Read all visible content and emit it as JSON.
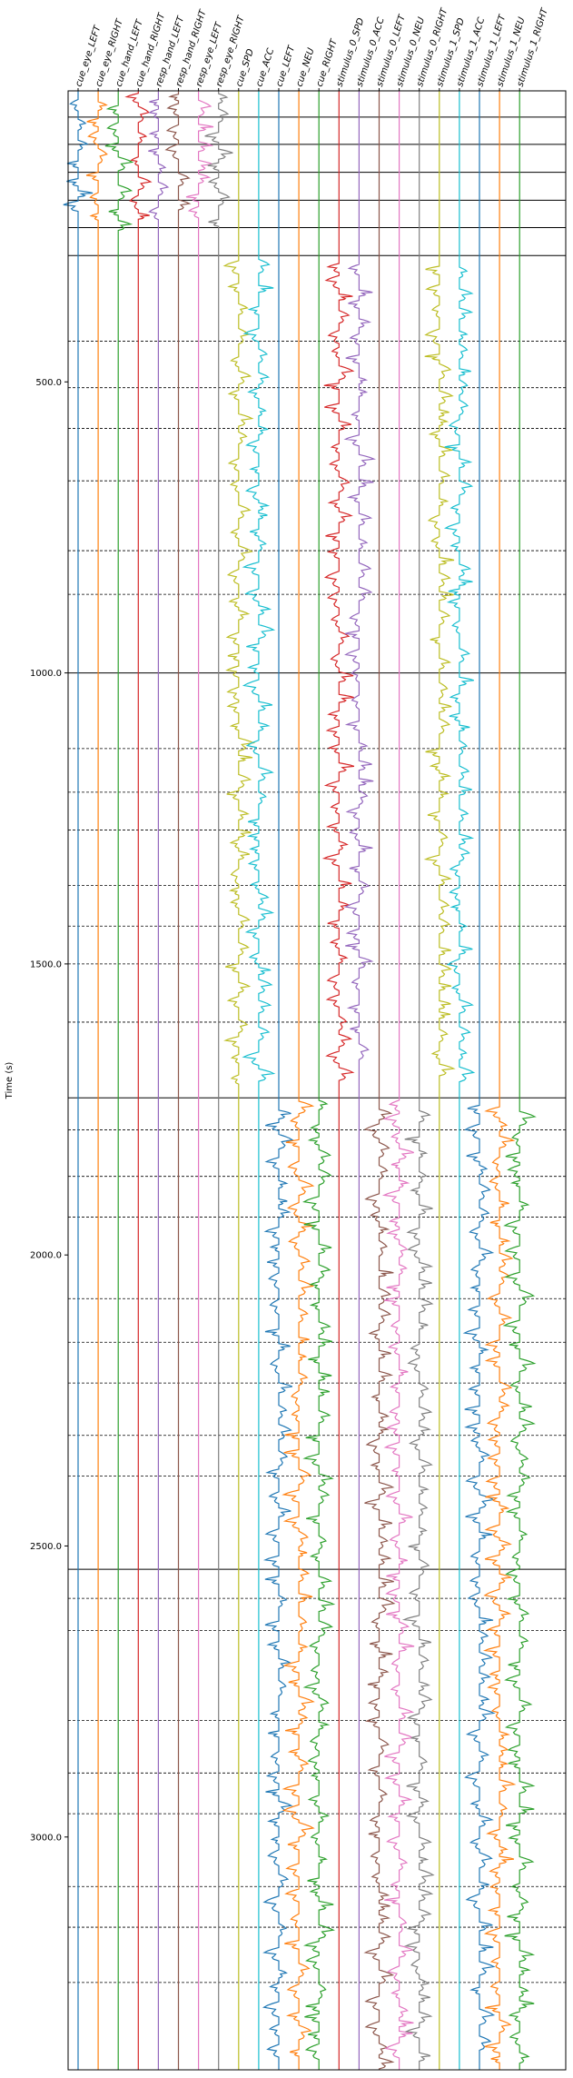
{
  "chart_data": {
    "type": "line",
    "title": "",
    "xlabel": "",
    "ylabel": "Time (s)",
    "ylim": [
      0,
      3400
    ],
    "y_inverted": true,
    "yticks": [
      500,
      1000,
      1500,
      2000,
      2500,
      3000
    ],
    "ytick_labels": [
      "500.0",
      "1000.0",
      "1500.0",
      "2000.0",
      "2500.0",
      "3000.0"
    ],
    "grid": false,
    "channels": [
      {
        "name": "cue_eye_LEFT",
        "color": "#1f77b4",
        "active": [
          [
            0,
            240
          ]
        ]
      },
      {
        "name": "cue_eye_RIGHT",
        "color": "#ff7f0e",
        "active": [
          [
            0,
            240
          ]
        ]
      },
      {
        "name": "cue_hand_LEFT",
        "color": "#2ca02c",
        "active": [
          [
            0,
            240
          ]
        ]
      },
      {
        "name": "cue_hand_RIGHT",
        "color": "#d62728",
        "active": [
          [
            0,
            240
          ]
        ]
      },
      {
        "name": "resp_hand_LEFT",
        "color": "#9467bd",
        "active": [
          [
            0,
            240
          ]
        ]
      },
      {
        "name": "resp_hand_RIGHT",
        "color": "#8c564b",
        "active": [
          [
            0,
            240
          ]
        ]
      },
      {
        "name": "resp_eye_LEFT",
        "color": "#e377c2",
        "active": [
          [
            0,
            240
          ]
        ]
      },
      {
        "name": "resp_eye_RIGHT",
        "color": "#7f7f7f",
        "active": [
          [
            0,
            240
          ]
        ]
      },
      {
        "name": "cue_SPD",
        "color": "#bcbd22",
        "active": [
          [
            285,
            1710
          ]
        ]
      },
      {
        "name": "cue_ACC",
        "color": "#17becf",
        "active": [
          [
            285,
            1710
          ]
        ]
      },
      {
        "name": "cue_LEFT",
        "color": "#1f77b4",
        "active": [
          [
            1730,
            3400
          ]
        ]
      },
      {
        "name": "cue_NEU",
        "color": "#ff7f0e",
        "active": [
          [
            1730,
            3400
          ]
        ]
      },
      {
        "name": "cue_RIGHT",
        "color": "#2ca02c",
        "active": [
          [
            1730,
            3400
          ]
        ]
      },
      {
        "name": "stimulus_0_SPD",
        "color": "#d62728",
        "active": [
          [
            285,
            1710
          ]
        ]
      },
      {
        "name": "stimulus_0_ACC",
        "color": "#9467bd",
        "active": [
          [
            285,
            1710
          ]
        ]
      },
      {
        "name": "stimulus_0_LEFT",
        "color": "#8c564b",
        "active": [
          [
            1730,
            3400
          ]
        ]
      },
      {
        "name": "stimulus_0_NEU",
        "color": "#e377c2",
        "active": [
          [
            1730,
            3400
          ]
        ]
      },
      {
        "name": "stimulus_0_RIGHT",
        "color": "#7f7f7f",
        "active": [
          [
            1730,
            3400
          ]
        ]
      },
      {
        "name": "stimulus_1_SPD",
        "color": "#bcbd22",
        "active": [
          [
            285,
            1710
          ]
        ]
      },
      {
        "name": "stimulus_1_ACC",
        "color": "#17becf",
        "active": [
          [
            285,
            1710
          ]
        ]
      },
      {
        "name": "stimulus_1_LEFT",
        "color": "#1f77b4",
        "active": [
          [
            1730,
            3400
          ]
        ]
      },
      {
        "name": "stimulus_1_NEU",
        "color": "#ff7f0e",
        "active": [
          [
            1730,
            3400
          ]
        ]
      },
      {
        "name": "stimulus_1_RIGHT",
        "color": "#2ca02c",
        "active": [
          [
            1730,
            3400
          ]
        ]
      }
    ],
    "run_boundaries_solid": [
      45,
      92,
      140,
      188,
      235,
      283,
      1000,
      1730,
      2540
    ],
    "block_boundaries_dashed": [
      430,
      510,
      580,
      670,
      790,
      865,
      1130,
      1205,
      1270,
      1365,
      1435,
      1500,
      1600,
      1785,
      1865,
      1935,
      2075,
      2150,
      2220,
      2310,
      2380,
      2590,
      2645,
      2800,
      2890,
      2960,
      3085,
      3155,
      3250
    ]
  }
}
